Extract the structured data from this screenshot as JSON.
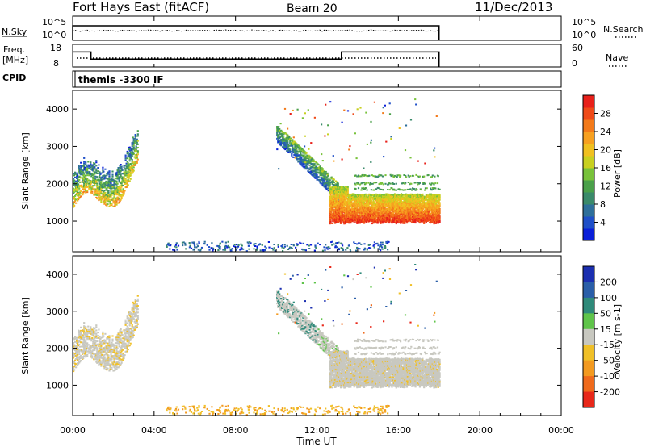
{
  "header": {
    "title": "Fort Hays East (fitACF)",
    "beam": "Beam 20",
    "date": "11/Dec/2013"
  },
  "top_panels": {
    "nsky_label": "N.Sky",
    "nsearch_label": "N.Search",
    "noise_ticks": [
      "10^5",
      "10^0"
    ],
    "freq_label_1": "Freq.",
    "freq_label_2": "[MHz]",
    "freq_ticks": [
      "18",
      "8"
    ],
    "nave_label": "Nave",
    "nave_ticks": [
      "60",
      "0"
    ],
    "cpid_label": "CPID",
    "cpid_value": "themis -3300 IF"
  },
  "axes": {
    "xlabel": "Time UT",
    "x_tick_labels": [
      "00:00",
      "04:00",
      "08:00",
      "12:00",
      "16:00",
      "20:00",
      "00:00"
    ],
    "ylabel": "Slant Range [km]",
    "y_tick_labels": [
      "1000",
      "2000",
      "3000",
      "4000"
    ]
  },
  "power_colorbar": {
    "label": "Power [dB]",
    "tick_labels": [
      "4",
      "8",
      "12",
      "16",
      "20",
      "24",
      "28"
    ],
    "colors": [
      "#0a1fd8",
      "#1f4fc8",
      "#2e6f9a",
      "#3a8a6a",
      "#4aa04a",
      "#78c23a",
      "#c8d020",
      "#f0c020",
      "#f7a020",
      "#f37a1a",
      "#ef4a18",
      "#e8201a"
    ]
  },
  "velocity_colorbar": {
    "label": "Velocity [m s-1]",
    "tick_labels": [
      "200",
      "100",
      "50",
      "15",
      "-15",
      "-50",
      "-100",
      "-200"
    ],
    "colors": [
      "#1b2fb0",
      "#2a5ea8",
      "#2f8a7a",
      "#5fc44a",
      "#c8c8c0",
      "#f0c028",
      "#f39a20",
      "#ef6a1c",
      "#e8281a"
    ]
  },
  "chart_data": {
    "type": "heatmap",
    "x_range_hours": [
      0,
      24
    ],
    "y_range_km": [
      180,
      4500
    ],
    "panels": [
      "power",
      "velocity"
    ],
    "regions": [
      {
        "name": "early-echoes",
        "t_start": 0.0,
        "t_end": 3.2,
        "range_low_km": 1300,
        "range_high_km": 3400
      },
      {
        "name": "far-range-band",
        "t_start": 10.0,
        "t_end": 13.0,
        "range_low_km": 1800,
        "range_high_km": 3600
      },
      {
        "name": "near-range-band",
        "t_start": 13.0,
        "t_end": 18.0,
        "range_low_km": 900,
        "range_high_km": 2300
      },
      {
        "name": "ground-scatter-strip",
        "t_start": 4.5,
        "t_end": 15.5,
        "range_low_km": 200,
        "range_high_km": 450
      }
    ],
    "operating_frequency_mhz": {
      "t": [
        0,
        0.9,
        0.9,
        13.2,
        13.2,
        18
      ],
      "value": [
        16,
        16,
        12,
        12,
        16,
        16
      ]
    },
    "data_end_hour": 18
  }
}
